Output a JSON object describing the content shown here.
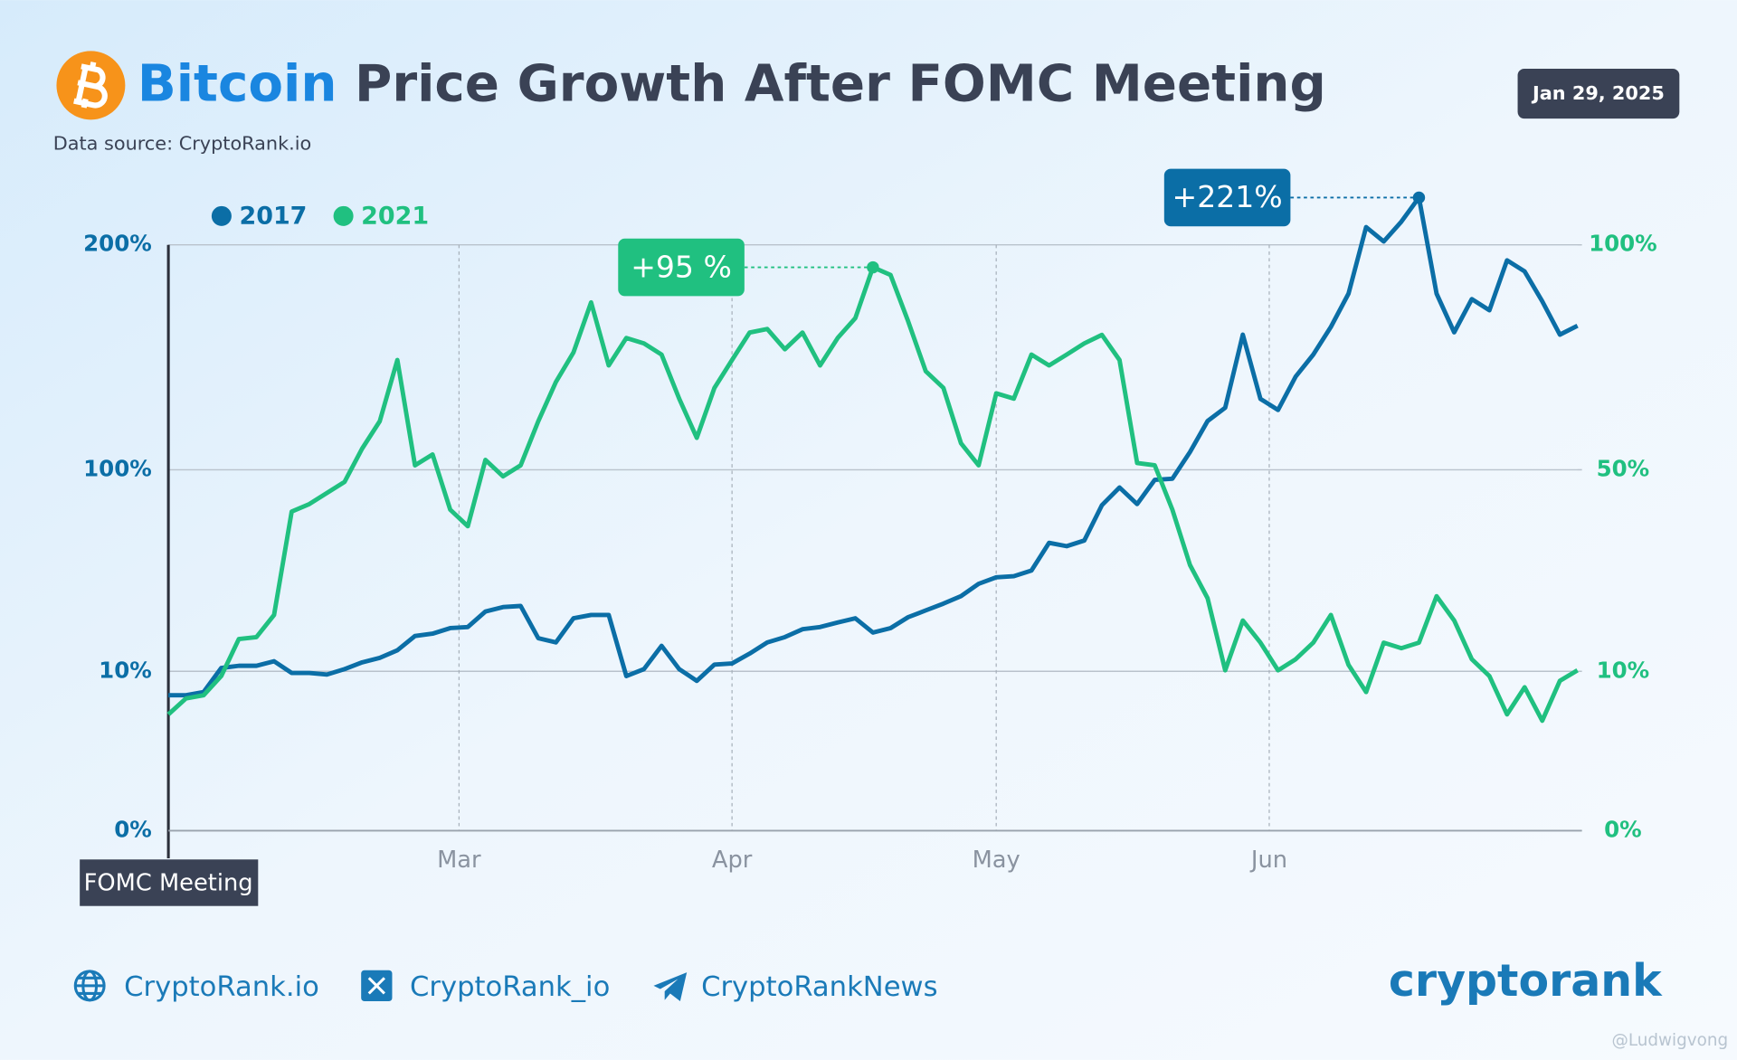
{
  "header": {
    "title_highlight": "Bitcoin",
    "title": "Price Growth After FOMC Meeting",
    "subtitle": "Data source: CryptoRank.io",
    "date": "Jan 29, 2025"
  },
  "chart_data": {
    "type": "line",
    "yscale": "custom",
    "x": [
      0,
      2,
      4,
      6,
      8,
      10,
      12,
      14,
      16,
      18,
      20,
      22,
      24,
      26,
      28,
      30,
      32,
      34,
      36,
      38,
      40,
      42,
      44,
      46,
      48,
      50,
      52,
      54,
      56,
      58,
      60,
      62,
      64,
      66,
      68,
      70,
      72,
      74,
      76,
      78,
      80,
      82,
      84,
      86,
      88,
      90,
      92,
      94,
      96,
      98,
      100,
      102,
      104,
      106,
      108,
      110,
      112,
      114,
      116,
      118,
      120,
      122,
      124,
      126,
      128,
      130,
      132,
      134,
      136,
      138,
      140,
      142,
      144,
      146,
      148,
      150,
      152,
      154,
      156,
      158,
      160
    ],
    "xlim": [
      0,
      160
    ],
    "xticks": [
      {
        "value": 0,
        "label": "FOMC Meeting"
      },
      {
        "value": 33,
        "label": "Mar"
      },
      {
        "value": 64,
        "label": "Apr"
      },
      {
        "value": 94,
        "label": "May"
      },
      {
        "value": 125,
        "label": "Jun"
      }
    ],
    "ylim": [
      0,
      200
    ],
    "yticks": [
      {
        "value": 0,
        "label": "0%"
      },
      {
        "value": 10,
        "label": "10%"
      },
      {
        "value": 100,
        "label": "100%"
      },
      {
        "value": 200,
        "label": "200%"
      }
    ],
    "y2lim": [
      0,
      100
    ],
    "y2ticks": [
      {
        "value": 0,
        "label": "0%"
      },
      {
        "value": 10,
        "label": "10%"
      },
      {
        "value": 50,
        "label": "50%"
      },
      {
        "value": 100,
        "label": "100%"
      }
    ],
    "grid": true,
    "series": [
      {
        "name": "2017",
        "color": "#0b6ea6",
        "values": [
          8.5,
          8.5,
          8.7,
          11.5,
          12.5,
          12.5,
          14.5,
          9.9,
          9.9,
          9.8,
          11,
          14,
          16,
          19.4,
          25.8,
          26.8,
          29.3,
          29.8,
          36.7,
          38.7,
          39.2,
          24.8,
          22.9,
          33.7,
          35.2,
          35.2,
          9.7,
          11,
          21.4,
          11,
          9.4,
          13,
          13.5,
          17.9,
          22.9,
          25.3,
          28.8,
          29.8,
          31.8,
          33.7,
          27.3,
          29.3,
          34.2,
          37.2,
          40.2,
          43.6,
          49.1,
          52,
          52.5,
          55,
          67.4,
          65.9,
          68.4,
          84.2,
          92.1,
          84.7,
          95.5,
          96,
          107.9,
          121.7,
          127.6,
          160.1,
          131.5,
          126.6,
          141.4,
          151.2,
          163.5,
          178.3,
          207.9,
          201.5,
          210.3,
          221,
          178.3,
          161.1,
          175.9,
          170.9,
          193.1,
          188.2,
          174.9,
          160.1,
          164
        ]
      },
      {
        "name": "2021",
        "color": "#20c080",
        "axis": "y2",
        "values": [
          7.3,
          8.3,
          8.5,
          9.7,
          16.4,
          16.8,
          21.2,
          41.7,
          43.2,
          45.4,
          47.6,
          54.7,
          60.8,
          74.4,
          51,
          53.4,
          42.1,
          38.8,
          52.2,
          48.7,
          51,
          60.8,
          69.5,
          76.1,
          87.2,
          73.2,
          79.3,
          78.1,
          75.6,
          65.8,
          57.1,
          68.2,
          74.4,
          80.5,
          81.3,
          76.8,
          80.5,
          73.2,
          79.3,
          83.7,
          95,
          93.3,
          83,
          71.9,
          68.2,
          55.9,
          51,
          67,
          65.8,
          75.6,
          73.2,
          75.6,
          78.1,
          80,
          74.4,
          51.5,
          51,
          42.1,
          31.1,
          24.5,
          10.2,
          20.1,
          15.7,
          10.2,
          12.4,
          15.7,
          21.2,
          11.3,
          8.7,
          15.7,
          14.6,
          15.7,
          24.9,
          20.1,
          12.4,
          9.7,
          7.3,
          9,
          6.9,
          9.4,
          10.2
        ]
      }
    ],
    "annotations": [
      "+221%",
      "+95 %"
    ]
  },
  "footer": {
    "links": [
      "CryptoRank.io",
      "CryptoRank_io",
      "CryptoRankNews"
    ],
    "brand": "cryptorank",
    "watermark": "@Ludwigvong"
  }
}
